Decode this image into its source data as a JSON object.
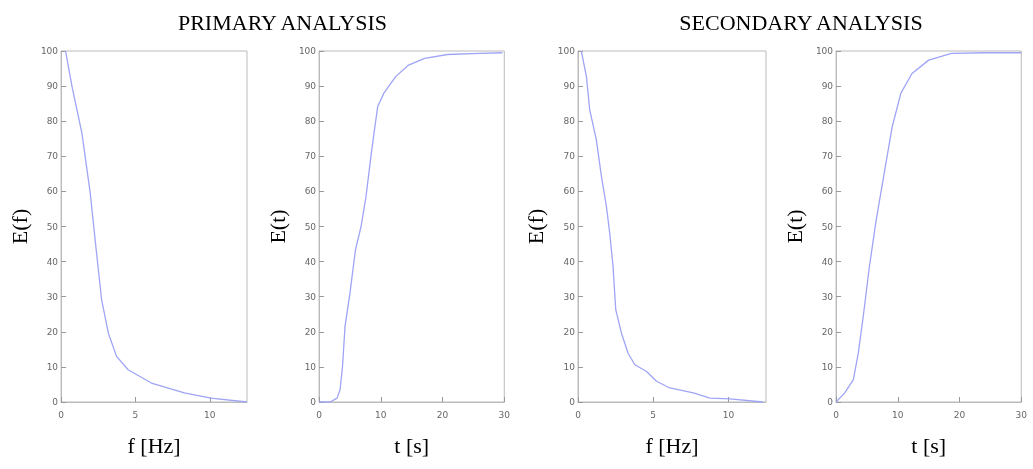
{
  "chart_data": [
    {
      "type": "line",
      "title": "PRIMARY ANALYSIS",
      "xlabel": "f [Hz]",
      "ylabel": "E(f)",
      "xlim": [
        0,
        12.5
      ],
      "xticks": [
        0,
        5,
        10
      ],
      "ylim": [
        0,
        100
      ],
      "yticks": [
        0,
        10,
        20,
        30,
        40,
        50,
        60,
        70,
        80,
        90,
        100
      ],
      "marker": "none",
      "line_style": "solid",
      "series": [
        {
          "color": "#9fa4f5",
          "x": [
            0.3,
            0.73,
            1.4,
            1.96,
            2.36,
            2.73,
            3.18,
            3.73,
            4.51,
            6.07,
            8.29,
            10.07,
            12.5
          ],
          "values": [
            100,
            90,
            76.6,
            59.5,
            43.4,
            29,
            19.6,
            13,
            9.2,
            5.4,
            2.6,
            1.1,
            0
          ]
        }
      ]
    },
    {
      "type": "line",
      "xlabel": "t [s]",
      "ylabel": "E(t)",
      "xlim": [
        0,
        30
      ],
      "xticks": [
        0,
        10,
        20,
        30
      ],
      "ylim": [
        0,
        100
      ],
      "yticks": [
        0,
        10,
        20,
        30,
        40,
        50,
        60,
        70,
        80,
        90,
        100
      ],
      "marker": "none",
      "line_style": "solid",
      "series": [
        {
          "color": "#9fa4f5",
          "x": [
            0,
            1.8,
            2.9,
            3.4,
            3.8,
            4.2,
            5,
            5.9,
            6.8,
            7.6,
            8.4,
            8.9,
            9.5,
            10.5,
            12.4,
            14.5,
            17.1,
            20.8,
            26,
            29.7
          ],
          "values": [
            0,
            0,
            1.1,
            3.5,
            10.2,
            21.5,
            31,
            43.4,
            50,
            58.5,
            70,
            76.6,
            84.2,
            88,
            92.7,
            96,
            97.9,
            99,
            99.3,
            99.5
          ]
        }
      ]
    },
    {
      "type": "line",
      "title": "SECONDARY ANALYSIS",
      "xlabel": "f [Hz]",
      "ylabel": "E(f)",
      "xlim": [
        0,
        12.5
      ],
      "xticks": [
        0,
        5,
        10
      ],
      "ylim": [
        0,
        100
      ],
      "yticks": [
        0,
        10,
        20,
        30,
        40,
        50,
        60,
        70,
        80,
        90,
        100
      ],
      "marker": "none",
      "line_style": "solid",
      "series": [
        {
          "color": "#9fa4f5",
          "x": [
            0.22,
            0.56,
            0.78,
            1.22,
            1.56,
            1.89,
            2.11,
            2.33,
            2.51,
            2.89,
            3.33,
            3.78,
            4.56,
            5.22,
            6.1,
            7.67,
            8.78,
            10.1,
            12.3
          ],
          "values": [
            100,
            92.7,
            83.2,
            74.7,
            64.2,
            55.7,
            48.1,
            38.6,
            26.3,
            19.6,
            13.9,
            10.6,
            8.7,
            5.9,
            4,
            2.6,
            1.1,
            0.9,
            0
          ]
        }
      ]
    },
    {
      "type": "line",
      "xlabel": "t [s]",
      "ylabel": "E(t)",
      "xlim": [
        0,
        30
      ],
      "xticks": [
        0,
        10,
        20,
        30
      ],
      "ylim": [
        0,
        100
      ],
      "yticks": [
        0,
        10,
        20,
        30,
        40,
        50,
        60,
        70,
        80,
        90,
        100
      ],
      "marker": "none",
      "line_style": "solid",
      "series": [
        {
          "color": "#9fa4f5",
          "x": [
            0,
            1.4,
            2.8,
            3.6,
            4.4,
            5.4,
            6.5,
            7.8,
            9.1,
            10.5,
            12.3,
            15,
            18.7,
            24,
            30
          ],
          "values": [
            0,
            2.6,
            6.4,
            13.9,
            24.4,
            38.6,
            51.9,
            65.2,
            78.5,
            88,
            93.6,
            97.4,
            99.3,
            99.5,
            99.5
          ]
        }
      ]
    }
  ]
}
